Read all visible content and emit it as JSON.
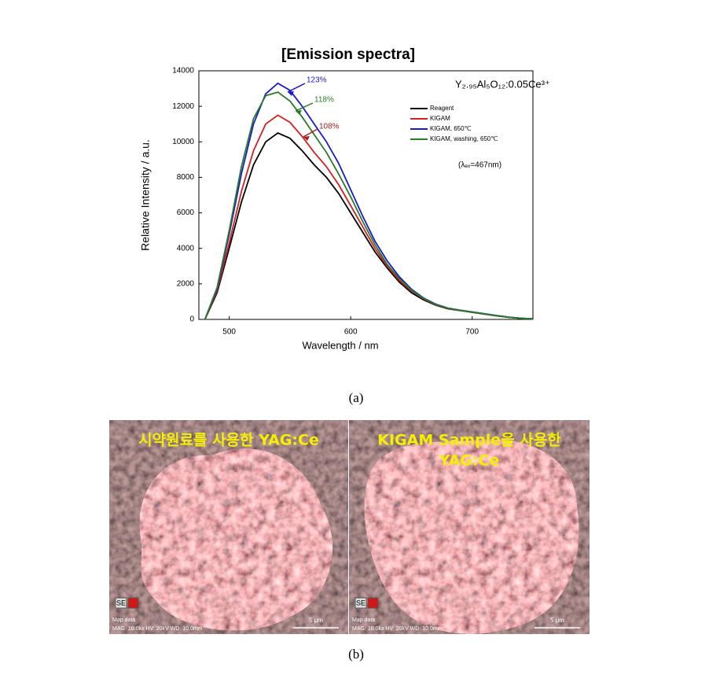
{
  "chart_data": {
    "type": "line",
    "title": "[Emission spectra]",
    "x_label": "Wavelength / nm",
    "y_label": "Relative Intensity / a.u.",
    "x": [
      480,
      490,
      500,
      510,
      520,
      530,
      540,
      550,
      560,
      570,
      580,
      590,
      600,
      610,
      620,
      630,
      640,
      650,
      660,
      670,
      680,
      690,
      700,
      710,
      720,
      730,
      740,
      750
    ],
    "series": [
      {
        "name": "Reagent",
        "color": "#000000",
        "values": [
          0,
          1500,
          4000,
          6600,
          8700,
          10000,
          10500,
          10200,
          9500,
          8700,
          8000,
          7100,
          6000,
          4900,
          3800,
          2900,
          2100,
          1500,
          1100,
          800,
          600,
          500,
          400,
          300,
          200,
          120,
          60,
          30
        ]
      },
      {
        "name": "KIGAM",
        "color": "#d42020",
        "values": [
          0,
          1600,
          4300,
          7200,
          9500,
          11000,
          11500,
          11100,
          10300,
          9400,
          8600,
          7600,
          6400,
          5200,
          4000,
          3000,
          2200,
          1600,
          1150,
          830,
          620,
          510,
          410,
          310,
          210,
          125,
          60,
          30
        ]
      },
      {
        "name": "KIGAM, 650℃",
        "color": "#1a1acc",
        "values": [
          0,
          1700,
          4800,
          8200,
          11000,
          12700,
          13300,
          12900,
          12000,
          11000,
          10000,
          8800,
          7300,
          5800,
          4400,
          3300,
          2400,
          1700,
          1200,
          860,
          640,
          520,
          420,
          320,
          220,
          130,
          65,
          30
        ]
      },
      {
        "name": "KIGAM, washing, 650℃",
        "color": "#2a7a2a",
        "values": [
          0,
          1800,
          5000,
          8600,
          11300,
          12600,
          12800,
          12300,
          11400,
          10400,
          9400,
          8200,
          6900,
          5500,
          4200,
          3100,
          2300,
          1650,
          1170,
          840,
          630,
          510,
          410,
          310,
          210,
          125,
          60,
          30
        ]
      }
    ],
    "xlim": [
      475,
      750
    ],
    "ylim": [
      0,
      14000
    ],
    "xticks": [
      500,
      600,
      700
    ],
    "yticks": [
      0,
      2000,
      4000,
      6000,
      8000,
      10000,
      12000,
      14000
    ],
    "legend": "upper-right",
    "formula": "Y₂.₉₅Al₅O₁₂:0.05Ce³⁺",
    "excitation": "(λₑₓ=467nm)",
    "annotations": [
      "123%",
      "118%",
      "108%"
    ]
  },
  "figure": {
    "caption_a": "(a)",
    "caption_b": "(b)",
    "images": [
      {
        "title_lines": [
          "시약원료를 사용한 YAG:Ce"
        ],
        "detector": "SE",
        "map_label": "Map data",
        "info": "MAG: 10.0kx  HV: 20kV  WD: 10.0mm",
        "scale": "5 μm"
      },
      {
        "title_lines": [
          "KIGAM Sample을 사용한",
          "YAG:Ce"
        ],
        "detector": "SE",
        "map_label": "Map data",
        "info": "MAG: 10.0kx  HV: 20kV  WD: 10.0mm",
        "scale": "5 μm"
      }
    ]
  }
}
